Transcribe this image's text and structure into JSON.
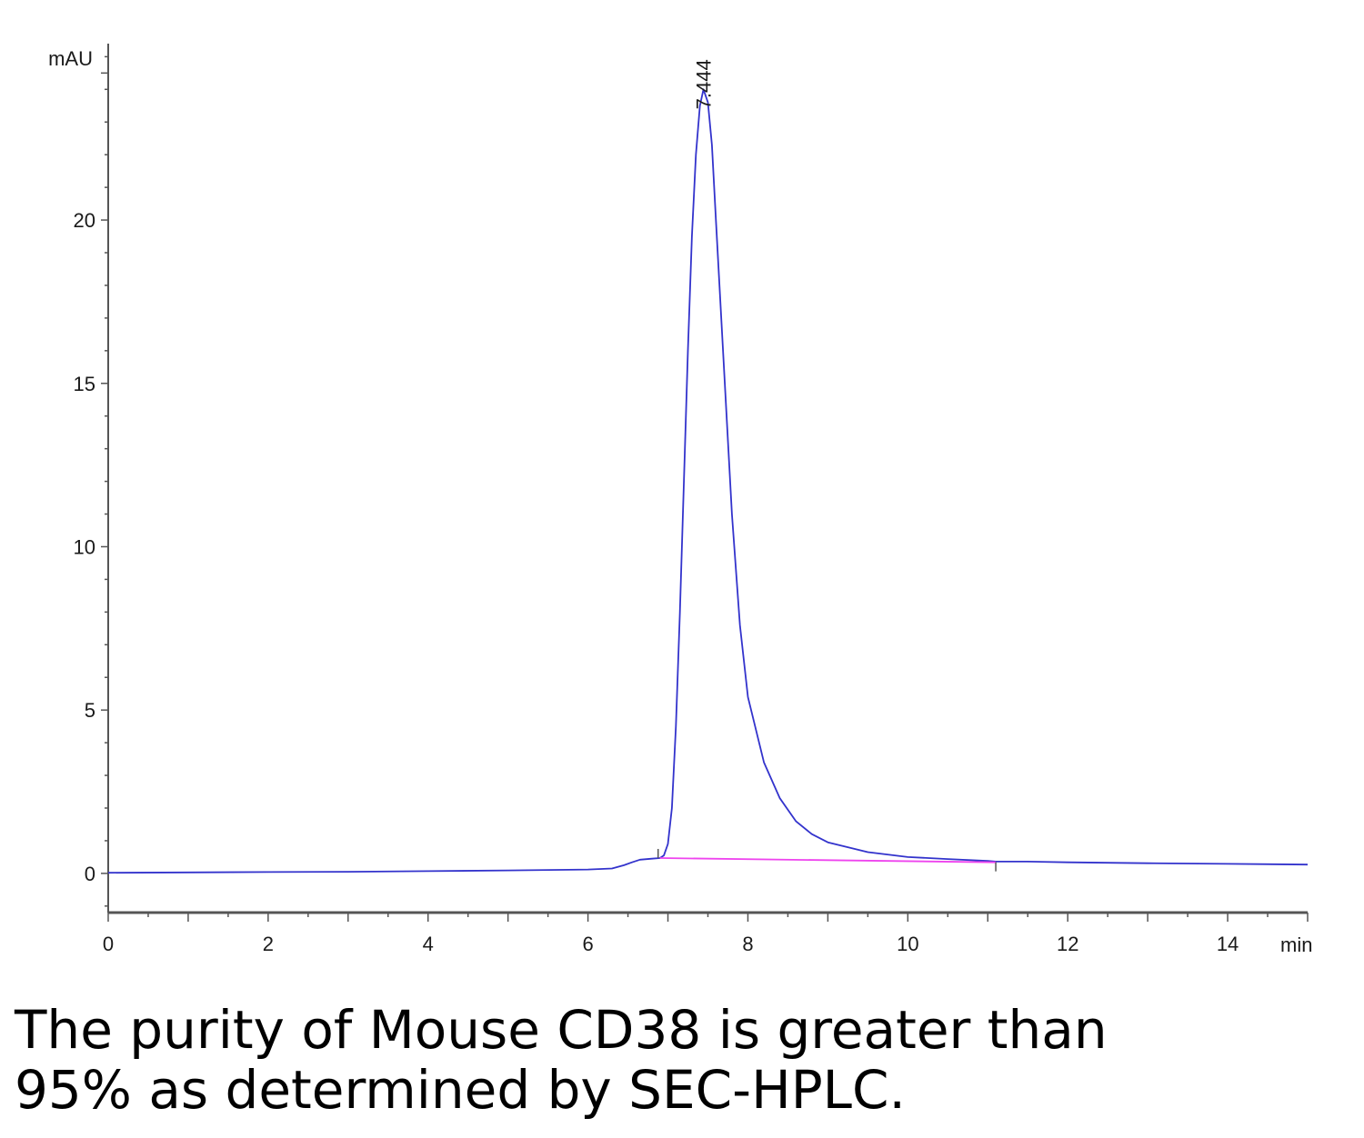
{
  "chart_data": {
    "type": "line",
    "xlabel": "min",
    "ylabel": "mAU",
    "xlim": [
      0,
      15
    ],
    "ylim": [
      -1.2,
      25.4
    ],
    "x_ticks": [
      0,
      2,
      4,
      6,
      8,
      10,
      12,
      14
    ],
    "y_ticks": [
      0,
      5,
      10,
      15,
      20
    ],
    "grid": false,
    "series": [
      {
        "color": "#3333cc",
        "points": [
          [
            0,
            0.02
          ],
          [
            1,
            0.03
          ],
          [
            2,
            0.04
          ],
          [
            3,
            0.05
          ],
          [
            4,
            0.07
          ],
          [
            5,
            0.09
          ],
          [
            6,
            0.12
          ],
          [
            6.3,
            0.15
          ],
          [
            6.45,
            0.25
          ],
          [
            6.55,
            0.34
          ],
          [
            6.65,
            0.42
          ],
          [
            6.8,
            0.45
          ],
          [
            6.9,
            0.47
          ],
          [
            6.95,
            0.55
          ],
          [
            7.0,
            0.9
          ],
          [
            7.05,
            2.0
          ],
          [
            7.1,
            4.5
          ],
          [
            7.15,
            8.0
          ],
          [
            7.2,
            12.0
          ],
          [
            7.25,
            16.0
          ],
          [
            7.3,
            19.5
          ],
          [
            7.35,
            22.0
          ],
          [
            7.4,
            23.5
          ],
          [
            7.444,
            24.0
          ],
          [
            7.5,
            23.6
          ],
          [
            7.55,
            22.3
          ],
          [
            7.6,
            20.0
          ],
          [
            7.7,
            15.5
          ],
          [
            7.8,
            11.0
          ],
          [
            7.9,
            7.6
          ],
          [
            8.0,
            5.4
          ],
          [
            8.2,
            3.4
          ],
          [
            8.4,
            2.3
          ],
          [
            8.6,
            1.6
          ],
          [
            8.8,
            1.2
          ],
          [
            9.0,
            0.95
          ],
          [
            9.5,
            0.65
          ],
          [
            10.0,
            0.5
          ],
          [
            10.5,
            0.44
          ],
          [
            11.0,
            0.38
          ],
          [
            11.1,
            0.36
          ],
          [
            11.5,
            0.36
          ],
          [
            12.0,
            0.34
          ],
          [
            13.0,
            0.31
          ],
          [
            14.0,
            0.29
          ],
          [
            15.0,
            0.27
          ]
        ]
      },
      {
        "color": "#ee44ee",
        "points": [
          [
            6.9,
            0.47
          ],
          [
            11.1,
            0.34
          ]
        ]
      }
    ],
    "annotations": [
      {
        "text": "7.444",
        "x": 7.444,
        "y": 24.0
      }
    ]
  },
  "caption": {
    "line1": "The purity of Mouse CD38 is greater than",
    "line2": "95% as determined by SEC-HPLC."
  }
}
